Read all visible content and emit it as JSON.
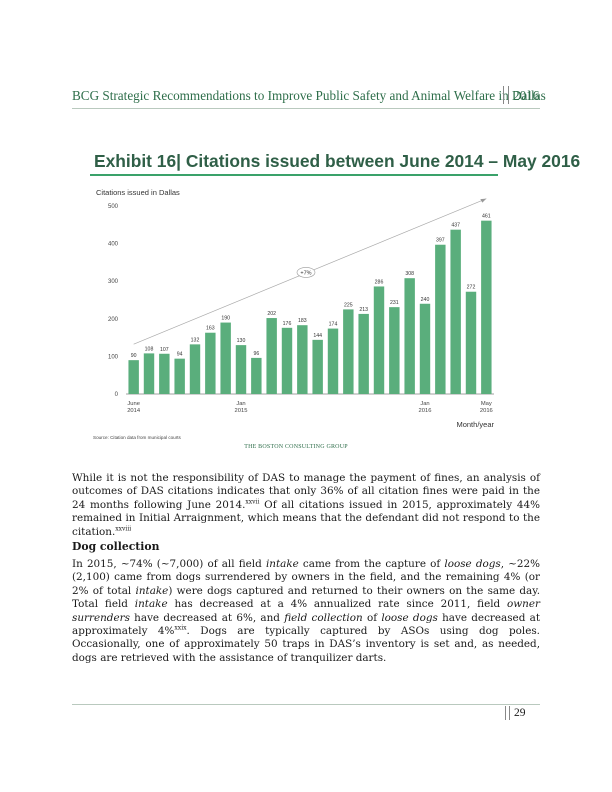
{
  "header": {
    "title": "BCG Strategic Recommendations to Improve Public Safety and Animal Welfare in Dallas",
    "year": "2016"
  },
  "exhibit": {
    "title": "Exhibit 16| Citations issued between June 2014 – May 2016"
  },
  "chart_data": {
    "type": "bar",
    "title": "Citations issued in Dallas",
    "xlabel": "Month/year",
    "ylabel": "",
    "ylim": [
      0,
      500
    ],
    "yticks": [
      0,
      100,
      200,
      300,
      400,
      500
    ],
    "values": [
      90,
      108,
      107,
      94,
      132,
      163,
      190,
      130,
      96,
      202,
      176,
      183,
      144,
      174,
      225,
      213,
      286,
      231,
      308,
      240,
      397,
      437,
      272,
      461
    ],
    "x_tick_labels": [
      {
        "index": 0,
        "line1": "June",
        "line2": "2014"
      },
      {
        "index": 7,
        "line1": "Jan",
        "line2": "2015"
      },
      {
        "index": 19,
        "line1": "Jan",
        "line2": "2016"
      },
      {
        "index": 23,
        "line1": "May",
        "line2": "2016"
      }
    ],
    "trend_label": "+7%",
    "source": "Source: Citation data from municipal courts",
    "logo_text": "THE BOSTON CONSULTING GROUP",
    "bar_color": "#5aae7c"
  },
  "body": {
    "p1_a": "While it is not the responsibility of DAS to manage the payment of fines, an analysis of outcomes of DAS citations indicates that only 36% of all citation fines were paid in the 24 months following June 2014.",
    "p1_sup1": "xxvii",
    "p1_b": " Of all citations issued in 2015, approximately 44% remained in Initial Arraignment, which means that the defendant did not respond to the citation.",
    "p1_sup2": "xxviii",
    "subhead": "Dog collection",
    "p2_1": "In 2015, ~74% (~7,000) of all field ",
    "p2_intake1": "intake",
    "p2_2": " came from the capture of ",
    "p2_loose1": "loose dogs",
    "p2_3": ", ~22% (2,100) came from dogs surrendered by owners in the field, and the remaining 4% (or 2% of total ",
    "p2_intake2": "intake",
    "p2_4": ") were dogs captured and returned to their owners on the same day. Total field ",
    "p2_intake3": "intake",
    "p2_5": " has decreased at a 4% annualized rate since 2011, field ",
    "p2_owner": "owner surrenders",
    "p2_6": " have decreased at 6%, and ",
    "p2_field": "field collection",
    "p2_7": " of ",
    "p2_loose2": "loose dogs",
    "p2_8": " have decreased at approximately 4%",
    "p2_sup": "xxix",
    "p2_9": ". Dogs are typically captured by ASOs using dog poles. Occasionally, one of approximately 50 traps in DAS’s inventory is set and, as needed, dogs are retrieved with the assistance of tranquilizer darts."
  },
  "footer": {
    "page_number": "29"
  }
}
